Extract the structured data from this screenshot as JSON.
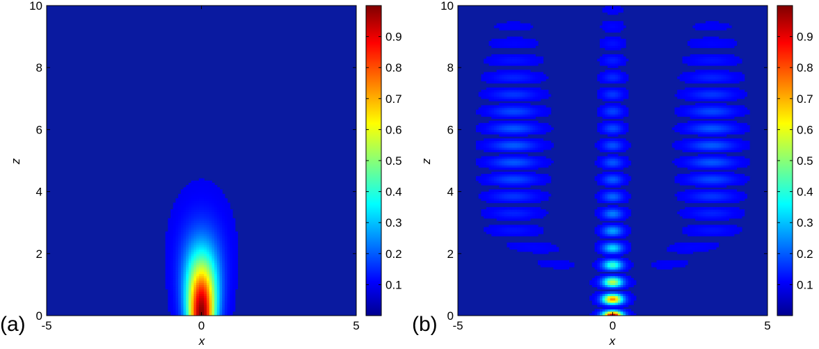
{
  "chart_data": [
    {
      "type": "heatmap",
      "panel_label": "(a)",
      "xlabel": "x",
      "ylabel": "z",
      "xlim": [
        -5,
        5
      ],
      "ylim": [
        0,
        10
      ],
      "x_ticks": [
        "-5",
        "0",
        "5"
      ],
      "y_ticks": [
        "0",
        "2",
        "4",
        "6",
        "8",
        "10"
      ],
      "colorbar": {
        "ticks": [
          "0.1",
          "0.2",
          "0.3",
          "0.4",
          "0.5",
          "0.6",
          "0.7",
          "0.8",
          "0.9"
        ],
        "range": [
          0,
          1
        ],
        "colormap": "jet"
      },
      "field": {
        "description": "single gaussian beam decaying with z",
        "x_center": 0,
        "x_halfwidth": 0.5,
        "z_extent": 3.5,
        "peak": 1.0
      }
    },
    {
      "type": "heatmap",
      "panel_label": "(b)",
      "xlabel": "x",
      "ylabel": "z",
      "xlim": [
        -5,
        5
      ],
      "ylim": [
        0,
        10
      ],
      "x_ticks": [
        "-5",
        "0",
        "5"
      ],
      "y_ticks": [
        "0",
        "2",
        "4",
        "6",
        "8",
        "10"
      ],
      "colorbar": {
        "ticks": [
          "0.1",
          "0.2",
          "0.3",
          "0.4",
          "0.5",
          "0.6",
          "0.7",
          "0.8",
          "0.9"
        ],
        "range": [
          0,
          1
        ],
        "colormap": "jet"
      },
      "field": {
        "description": "periodic fringe pattern with spreading arcs",
        "x_center": 0,
        "fringe_period_z": 0.55,
        "peak": 1.0,
        "z_extent": 8.5
      }
    }
  ]
}
